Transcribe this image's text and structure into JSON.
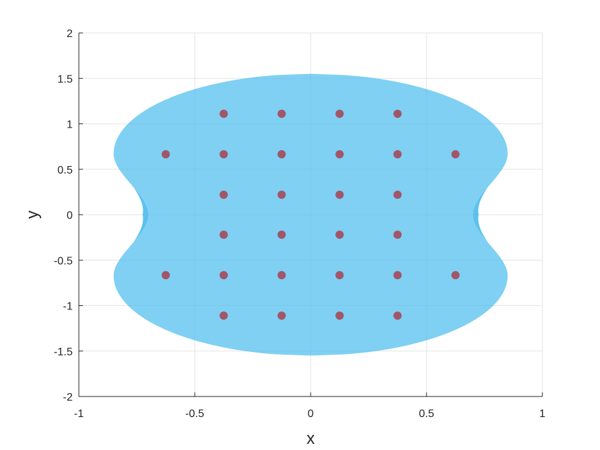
{
  "chart_data": {
    "type": "scatter",
    "xlabel": "x",
    "ylabel": "y",
    "xlim": [
      -1,
      1
    ],
    "ylim": [
      -2,
      2
    ],
    "x_ticks": [
      "-1",
      "-0.5",
      "0",
      "0.5",
      "1"
    ],
    "y_ticks": [
      "-2",
      "-1.5",
      "-1",
      "-0.5",
      "0",
      "0.5",
      "1",
      "1.5",
      "2"
    ],
    "grid": true,
    "colors": {
      "region_fill": "#4dbeee",
      "region_edge_fill": "#3fb6ea",
      "point": "#a2566a",
      "grid": "#e3e3e3",
      "axis": "#262626"
    },
    "region": {
      "outer_half_width": 0.85,
      "outer_half_height": 1.55,
      "waist_half_width": 0.7,
      "lobe_y": 0.67
    },
    "points": [
      {
        "x": -0.375,
        "y": 1.11
      },
      {
        "x": -0.125,
        "y": 1.11
      },
      {
        "x": 0.125,
        "y": 1.11
      },
      {
        "x": 0.375,
        "y": 1.11
      },
      {
        "x": -0.625,
        "y": 0.665
      },
      {
        "x": -0.375,
        "y": 0.665
      },
      {
        "x": -0.125,
        "y": 0.665
      },
      {
        "x": 0.125,
        "y": 0.665
      },
      {
        "x": 0.375,
        "y": 0.665
      },
      {
        "x": 0.625,
        "y": 0.665
      },
      {
        "x": -0.375,
        "y": 0.22
      },
      {
        "x": -0.125,
        "y": 0.22
      },
      {
        "x": 0.125,
        "y": 0.22
      },
      {
        "x": 0.375,
        "y": 0.22
      },
      {
        "x": -0.375,
        "y": -0.22
      },
      {
        "x": -0.125,
        "y": -0.22
      },
      {
        "x": 0.125,
        "y": -0.22
      },
      {
        "x": 0.375,
        "y": -0.22
      },
      {
        "x": -0.625,
        "y": -0.665
      },
      {
        "x": -0.375,
        "y": -0.665
      },
      {
        "x": -0.125,
        "y": -0.665
      },
      {
        "x": 0.125,
        "y": -0.665
      },
      {
        "x": 0.375,
        "y": -0.665
      },
      {
        "x": 0.625,
        "y": -0.665
      },
      {
        "x": -0.375,
        "y": -1.11
      },
      {
        "x": -0.125,
        "y": -1.11
      },
      {
        "x": 0.125,
        "y": -1.11
      },
      {
        "x": 0.375,
        "y": -1.11
      }
    ]
  }
}
